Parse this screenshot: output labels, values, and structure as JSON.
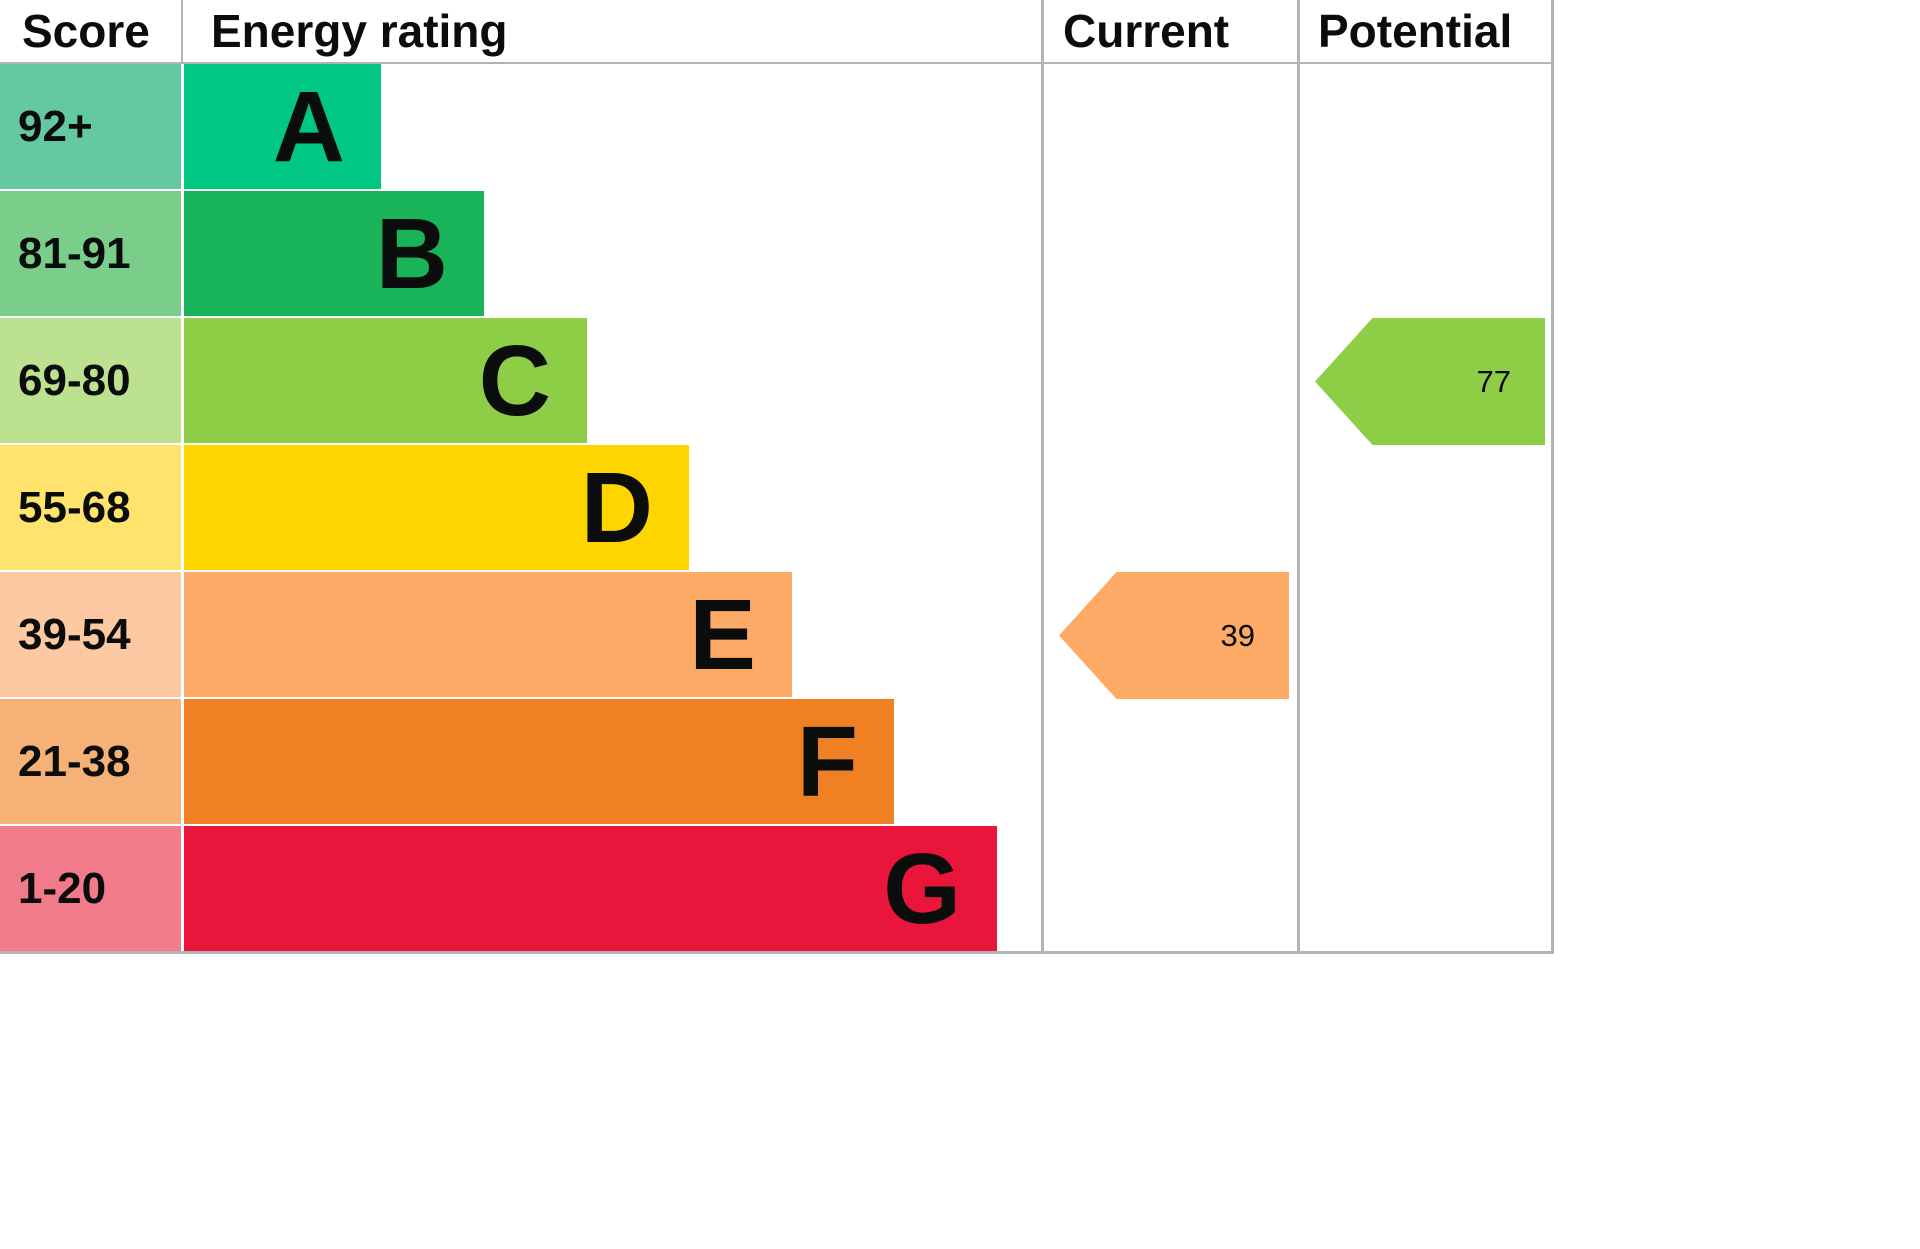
{
  "header": {
    "score": "Score",
    "energy_rating": "Energy rating",
    "current": "Current",
    "potential": "Potential"
  },
  "bands": [
    {
      "letter": "A",
      "score": "92+",
      "bar_color": "#00c781",
      "score_color": "#64c8a3"
    },
    {
      "letter": "B",
      "score": "81-91",
      "bar_color": "#19b459",
      "score_color": "#7bce8a"
    },
    {
      "letter": "C",
      "score": "69-80",
      "bar_color": "#8dce46",
      "score_color": "#bce28f"
    },
    {
      "letter": "D",
      "score": "55-68",
      "bar_color": "#ffd500",
      "score_color": "#ffe36c"
    },
    {
      "letter": "E",
      "score": "39-54",
      "bar_color": "#fcaa65",
      "score_color": "#fdc9a2"
    },
    {
      "letter": "F",
      "score": "21-38",
      "bar_color": "#ef8023",
      "score_color": "#f5b176"
    },
    {
      "letter": "G",
      "score": "1-20",
      "bar_color": "#e9153b",
      "score_color": "#f27b8b"
    }
  ],
  "markers": {
    "current": {
      "value": "39",
      "band": "E",
      "color": "#fcaa65"
    },
    "potential": {
      "value": "77",
      "band": "C",
      "color": "#8dce46"
    }
  },
  "chart_data": {
    "type": "bar",
    "title": "Energy rating",
    "columns": [
      "Score",
      "Energy rating",
      "Current",
      "Potential"
    ],
    "categories": [
      "A",
      "B",
      "C",
      "D",
      "E",
      "F",
      "G"
    ],
    "score_ranges": [
      "92+",
      "81-91",
      "69-80",
      "55-68",
      "39-54",
      "21-38",
      "1-20"
    ],
    "band_colors": [
      "#00c781",
      "#19b459",
      "#8dce46",
      "#ffd500",
      "#fcaa65",
      "#ef8023",
      "#e9153b"
    ],
    "current_rating": {
      "value": 39,
      "band": "E"
    },
    "potential_rating": {
      "value": 77,
      "band": "C"
    },
    "legend_position": "none",
    "grid": false
  }
}
